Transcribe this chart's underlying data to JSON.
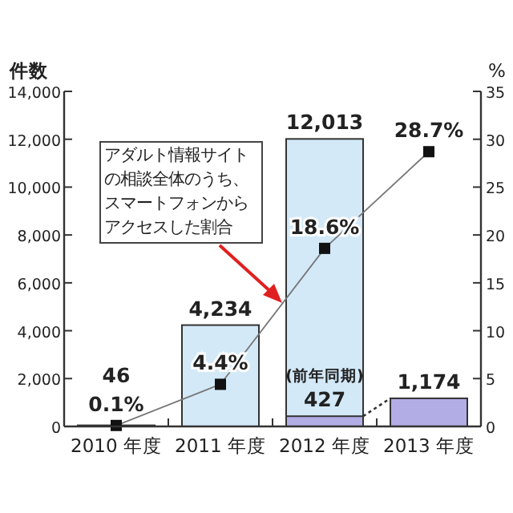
{
  "chart_data": {
    "type": "bar",
    "ylabel": "件数",
    "y2label": "%",
    "categories": [
      "2010 年度",
      "2011 年度",
      "2012 年度",
      "2013 年度"
    ],
    "ylim": [
      0,
      14000
    ],
    "yticks": [
      {
        "value": 0,
        "label": "0"
      },
      {
        "value": 2000,
        "label": "2,000"
      },
      {
        "value": 4000,
        "label": "4,000"
      },
      {
        "value": 6000,
        "label": "6,000"
      },
      {
        "value": 8000,
        "label": "8,000"
      },
      {
        "value": 10000,
        "label": "10,000"
      },
      {
        "value": 12000,
        "label": "12,000"
      },
      {
        "value": 14000,
        "label": "14,000"
      }
    ],
    "y2lim": [
      0,
      35
    ],
    "y2ticks": [
      0,
      5,
      10,
      15,
      20,
      25,
      30,
      35
    ],
    "series": [
      {
        "color": "#d3e9f8",
        "values": [
          46,
          4234,
          12013,
          null
        ],
        "value_labels": [
          "46",
          "4,234",
          "12,013",
          null
        ]
      },
      {
        "color": "#b3ade6",
        "values": [
          null,
          null,
          427,
          1174
        ],
        "value_labels": [
          null,
          null,
          "427",
          "1,174"
        ]
      },
      {
        "type": "line",
        "axis": "y2",
        "color": "#777777",
        "marker": "square",
        "values": [
          0.1,
          4.4,
          18.6,
          28.7
        ],
        "value_labels": [
          "0.1%",
          "4.4%",
          "18.6%",
          "28.7%"
        ]
      }
    ],
    "annotations": [
      {
        "text": "(前年同期)",
        "x": "2012 年度",
        "y": 427
      },
      "アダルト情報サイトの相談全体のうち、スマートフォンからアクセスした割合"
    ],
    "grid": false
  }
}
